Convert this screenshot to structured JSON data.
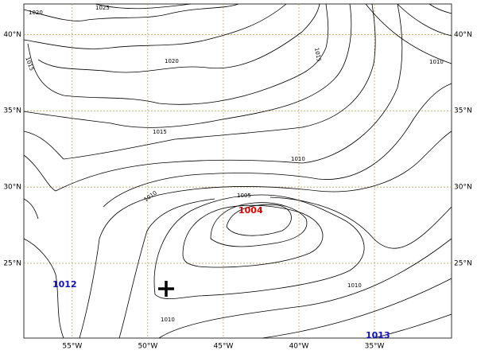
{
  "map": {
    "type": "isobar-map",
    "xlim": [
      -58.2,
      -29.9
    ],
    "ylim": [
      20.1,
      42
    ],
    "xticks": [
      {
        "value": -55,
        "label": "55°W"
      },
      {
        "value": -50,
        "label": "50°W"
      },
      {
        "value": -45,
        "label": "45°W"
      },
      {
        "value": -40,
        "label": "40°W"
      },
      {
        "value": -35,
        "label": "35°W"
      }
    ],
    "yticks": [
      {
        "value": 25,
        "label": "25°N"
      },
      {
        "value": 30,
        "label": "30°N"
      },
      {
        "value": 35,
        "label": "35°N"
      },
      {
        "value": 40,
        "label": "40°N"
      }
    ],
    "grid": true,
    "grid_color": "#b09a50",
    "contour_labels": [
      "1025",
      "1020",
      "1015",
      "1010",
      "1020",
      "1015",
      "1015",
      "1010",
      "1010",
      "1005",
      "1010",
      "1010"
    ],
    "low_label": "1004",
    "pressure_labels": [
      "1012",
      "1013"
    ]
  }
}
